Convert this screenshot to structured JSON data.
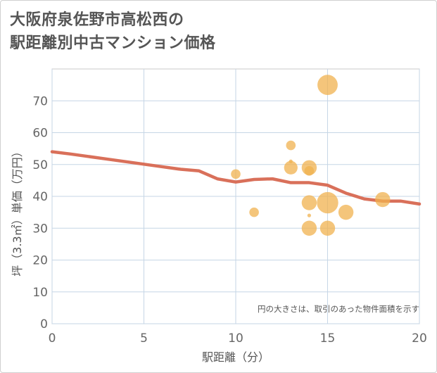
{
  "title_lines": [
    "大阪府泉佐野市高松西の",
    "駅距離別中古マンション価格"
  ],
  "chart_data": {
    "type": "scatter",
    "title": "大阪府泉佐野市高松西の駅距離別中古マンション価格",
    "xlabel": "駅距離（分）",
    "ylabel": "坪（3.3㎡）単価（万円）",
    "xlim": [
      0,
      20
    ],
    "ylim": [
      0,
      80
    ],
    "xticks": [
      0,
      5,
      10,
      15,
      20
    ],
    "yticks": [
      0,
      10,
      20,
      30,
      40,
      50,
      60,
      70
    ],
    "grid": true,
    "note": "円の大きさは、取引のあった物件面積を示す",
    "bubble_color": "#f0b24f",
    "line_color": "#d9705a",
    "bubbles": [
      {
        "x": 10,
        "y": 47,
        "size": 2
      },
      {
        "x": 11,
        "y": 35,
        "size": 2
      },
      {
        "x": 13,
        "y": 56,
        "size": 2
      },
      {
        "x": 13,
        "y": 51,
        "size": 0.3
      },
      {
        "x": 13,
        "y": 49,
        "size": 4
      },
      {
        "x": 14,
        "y": 49,
        "size": 5
      },
      {
        "x": 14,
        "y": 48,
        "size": 2
      },
      {
        "x": 14,
        "y": 38,
        "size": 5
      },
      {
        "x": 14,
        "y": 34,
        "size": 0.3
      },
      {
        "x": 14,
        "y": 30,
        "size": 5
      },
      {
        "x": 15,
        "y": 75,
        "size": 9
      },
      {
        "x": 15,
        "y": 38,
        "size": 10
      },
      {
        "x": 15,
        "y": 30,
        "size": 5
      },
      {
        "x": 16,
        "y": 35,
        "size": 5
      },
      {
        "x": 18,
        "y": 39,
        "size": 5
      }
    ],
    "trend_line": {
      "name": "average",
      "x": [
        0,
        1,
        2,
        3,
        4,
        5,
        6,
        7,
        8,
        9,
        10,
        11,
        12,
        13,
        14,
        15,
        16,
        17,
        18,
        19,
        20
      ],
      "y": [
        54,
        53.3,
        52.5,
        51.7,
        50.9,
        50.1,
        49.3,
        48.5,
        48,
        45.5,
        44.5,
        45.3,
        45.5,
        44.3,
        44.3,
        43.5,
        41,
        39.2,
        38.5,
        38.5,
        37.6
      ]
    }
  }
}
